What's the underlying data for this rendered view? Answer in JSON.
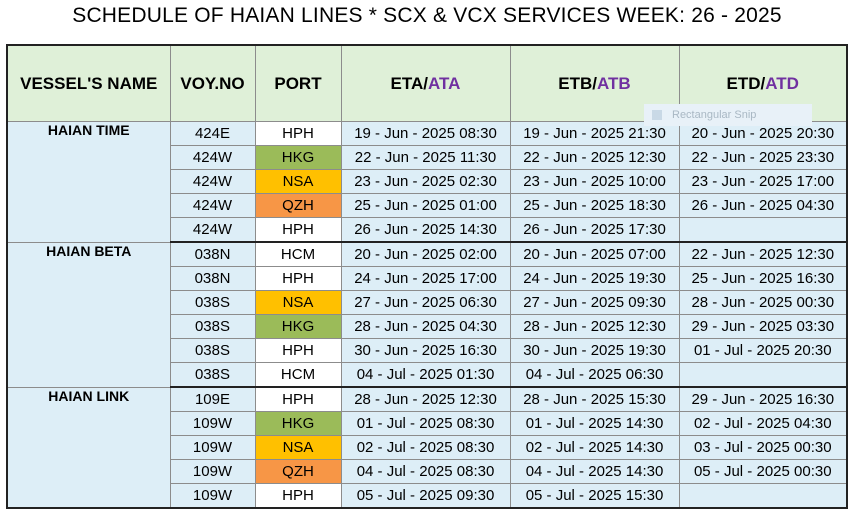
{
  "title": "SCHEDULE OF HAIAN LINES * SCX & VCX SERVICES WEEK: 26 - 2025",
  "headers": {
    "vessel": "VESSEL'S NAME",
    "voy": "VOY.NO",
    "port": "PORT",
    "eta_a": "ETA/",
    "eta_b": "ATA",
    "etb_a": "ETB/",
    "etb_b": "ATB",
    "etd_a": "ETD/",
    "etd_b": "ATD"
  },
  "ghost_label": "Rectangular Snip",
  "colors": {
    "header_bg": "#dff0d8",
    "row_bg": "#ddeef7",
    "hkg": "#9bbb59",
    "nsa": "#ffc000",
    "qzh": "#f79646",
    "accent": "#7030a0"
  },
  "vessels": [
    {
      "name": "HAIAN TIME",
      "rows": [
        {
          "voy": "424E",
          "port": "HPH",
          "eta": "19 - Jun - 2025  08:30",
          "etb": "19 - Jun - 2025  21:30",
          "etd": "20 - Jun - 2025  20:30"
        },
        {
          "voy": "424W",
          "port": "HKG",
          "eta": "22 - Jun - 2025  11:30",
          "etb": "22 - Jun - 2025  12:30",
          "etd": "22 - Jun - 2025  23:30"
        },
        {
          "voy": "424W",
          "port": "NSA",
          "eta": "23 - Jun - 2025  02:30",
          "etb": "23 - Jun - 2025  10:00",
          "etd": "23 - Jun - 2025  17:00"
        },
        {
          "voy": "424W",
          "port": "QZH",
          "eta": "25 - Jun - 2025  01:00",
          "etb": "25 - Jun - 2025  18:30",
          "etd": "26 - Jun - 2025  04:30"
        },
        {
          "voy": "424W",
          "port": "HPH",
          "eta": "26 - Jun - 2025  14:30",
          "etb": "26 - Jun - 2025  17:30",
          "etd": ""
        }
      ]
    },
    {
      "name": "HAIAN BETA",
      "rows": [
        {
          "voy": "038N",
          "port": "HCM",
          "eta": "20 - Jun - 2025  02:00",
          "etb": "20 - Jun - 2025  07:00",
          "etd": "22 - Jun - 2025  12:30"
        },
        {
          "voy": "038N",
          "port": "HPH",
          "eta": "24 - Jun - 2025  17:00",
          "etb": "24 - Jun - 2025  19:30",
          "etd": "25 - Jun - 2025  16:30"
        },
        {
          "voy": "038S",
          "port": "NSA",
          "eta": "27 - Jun - 2025  06:30",
          "etb": "27 - Jun - 2025  09:30",
          "etd": "28 - Jun - 2025  00:30"
        },
        {
          "voy": "038S",
          "port": "HKG",
          "eta": "28 - Jun - 2025  04:30",
          "etb": "28 - Jun - 2025  12:30",
          "etd": "29 - Jun - 2025  03:30"
        },
        {
          "voy": "038S",
          "port": "HPH",
          "eta": "30 - Jun - 2025  16:30",
          "etb": "30 - Jun - 2025  19:30",
          "etd": "01 - Jul - 2025  20:30"
        },
        {
          "voy": "038S",
          "port": "HCM",
          "eta": "04 - Jul - 2025  01:30",
          "etb": "04 - Jul - 2025  06:30",
          "etd": ""
        }
      ]
    },
    {
      "name": "HAIAN LINK",
      "rows": [
        {
          "voy": "109E",
          "port": "HPH",
          "eta": "28 - Jun - 2025  12:30",
          "etb": "28 - Jun - 2025  15:30",
          "etd": "29 - Jun - 2025  16:30"
        },
        {
          "voy": "109W",
          "port": "HKG",
          "eta": "01 - Jul - 2025  08:30",
          "etb": "01 - Jul - 2025  14:30",
          "etd": "02 - Jul - 2025  04:30"
        },
        {
          "voy": "109W",
          "port": "NSA",
          "eta": "02 - Jul - 2025  08:30",
          "etb": "02 - Jul - 2025  14:30",
          "etd": "03 - Jul - 2025  00:30"
        },
        {
          "voy": "109W",
          "port": "QZH",
          "eta": "04 - Jul - 2025  08:30",
          "etb": "04 - Jul - 2025  14:30",
          "etd": "05 - Jul - 2025  00:30"
        },
        {
          "voy": "109W",
          "port": "HPH",
          "eta": "05 - Jul - 2025  09:30",
          "etb": "05 - Jul - 2025  15:30",
          "etd": ""
        }
      ]
    }
  ]
}
